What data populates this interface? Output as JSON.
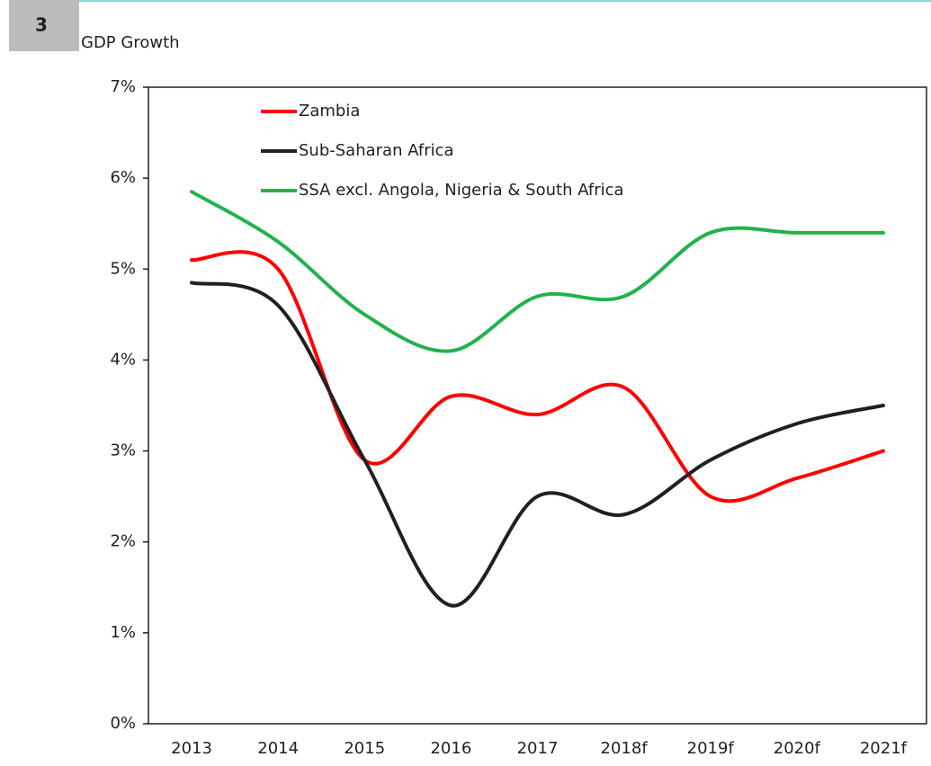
{
  "badge": "3",
  "chart_data": {
    "type": "line",
    "title": "GDP Growth",
    "categories": [
      "2013",
      "2014",
      "2015",
      "2016",
      "2017",
      "2018f",
      "2019f",
      "2020f",
      "2021f"
    ],
    "series": [
      {
        "name": "Zambia",
        "color": "#ff0000",
        "values": [
          5.1,
          5.0,
          2.9,
          3.6,
          3.4,
          3.7,
          2.5,
          2.7,
          3.0
        ]
      },
      {
        "name": "Sub-Saharan Africa",
        "color": "#231f20",
        "values": [
          4.85,
          4.6,
          2.9,
          1.3,
          2.5,
          2.3,
          2.9,
          3.3,
          3.5
        ]
      },
      {
        "name": "SSA excl. Angola, Nigeria & South Africa",
        "color": "#22b24c",
        "values": [
          5.85,
          5.3,
          4.5,
          4.1,
          4.7,
          4.7,
          5.4,
          5.4,
          5.4
        ]
      }
    ],
    "ylim": [
      0,
      7
    ],
    "yticks": [
      {
        "value": 0,
        "label": "0%"
      },
      {
        "value": 1,
        "label": "1%"
      },
      {
        "value": 2,
        "label": "2%"
      },
      {
        "value": 3,
        "label": "3%"
      },
      {
        "value": 4,
        "label": "4%"
      },
      {
        "value": 5,
        "label": "5%"
      },
      {
        "value": 6,
        "label": "6%"
      },
      {
        "value": 7,
        "label": "7%"
      }
    ],
    "legend": "upper-left",
    "grid": false
  }
}
